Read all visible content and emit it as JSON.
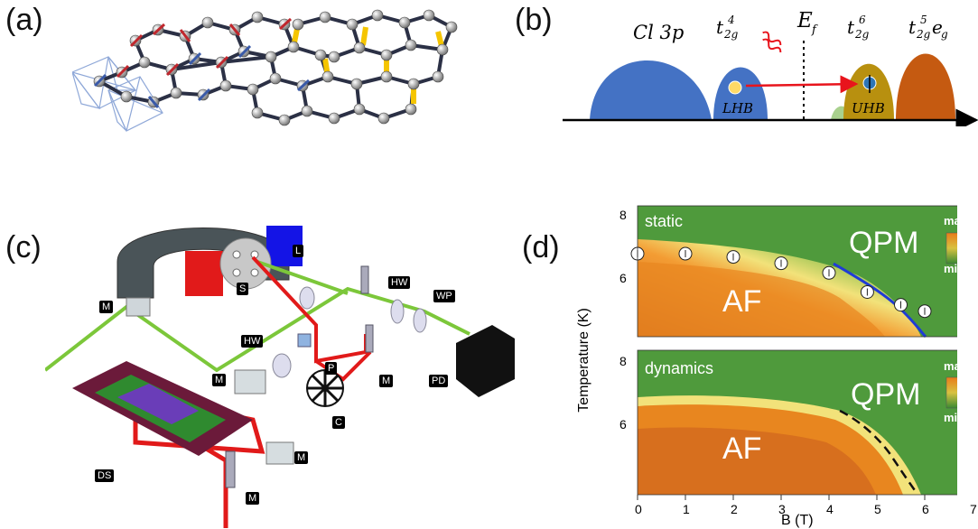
{
  "panels": {
    "a": "(a)",
    "b": "(b)",
    "c": "(c)",
    "d": "(d)"
  },
  "band_diagram": {
    "bands": [
      "Cl 3p",
      "t",
      "E",
      "t",
      "t"
    ],
    "band_labels": {
      "cl": "Cl 3p",
      "t2g4_base": "t",
      "t2g4_sub": "2g",
      "t2g4_sup": "4",
      "ef_base": "E",
      "ef_sub": "f",
      "t2g6_base": "t",
      "t2g6_sub": "2g",
      "t2g6_sup": "6",
      "t2g5eg_base": "t",
      "t2g5eg_sub": "2g",
      "t2g5eg_sup": "5",
      "t2g5eg_e": "e",
      "t2g5eg_esub": "g"
    },
    "lhb": "LHB",
    "uhb": "UHB",
    "colors": {
      "cl": "#4472c4",
      "lhb": "#4472c4",
      "uhb": "#b8900f",
      "eg": "#c55a11",
      "arrow": "#e8141c"
    }
  },
  "setup_labels": {
    "S": "S",
    "L": "L",
    "M1": "M",
    "HW1": "HW",
    "WP": "WP",
    "HW2": "HW",
    "P": "P",
    "M2": "M",
    "M3": "M",
    "PD": "PD",
    "C": "C",
    "M4": "M",
    "DS": "DS",
    "M5": "M"
  },
  "heatmaps": {
    "top": {
      "title": "static",
      "phase_high": "QPM",
      "phase_low": "AF",
      "cbar_max": "max",
      "cbar_min": "min"
    },
    "bottom": {
      "title": "dynamics",
      "phase_high": "QPM",
      "phase_low": "AF",
      "cbar_max": "max",
      "cbar_min": "min"
    },
    "ylabel": "Temperature (K)",
    "xlabel": "B (T)",
    "yticks_top": [
      "8",
      "6"
    ],
    "yticks_bottom": [
      "8",
      "6"
    ],
    "xticks": [
      "0",
      "1",
      "2",
      "3",
      "4",
      "5",
      "6",
      "7"
    ]
  },
  "chart_data": {
    "type": "scatter",
    "x": [
      0,
      1,
      2,
      3,
      4,
      4.8,
      5.5,
      6
    ],
    "y": [
      7.0,
      7.0,
      6.9,
      6.7,
      6.4,
      5.8,
      5.4,
      5.2
    ],
    "xlabel": "B (T)",
    "ylabel": "Temperature (K)",
    "xlim": [
      0,
      7
    ],
    "ylim": [
      4.4,
      8.5
    ]
  }
}
